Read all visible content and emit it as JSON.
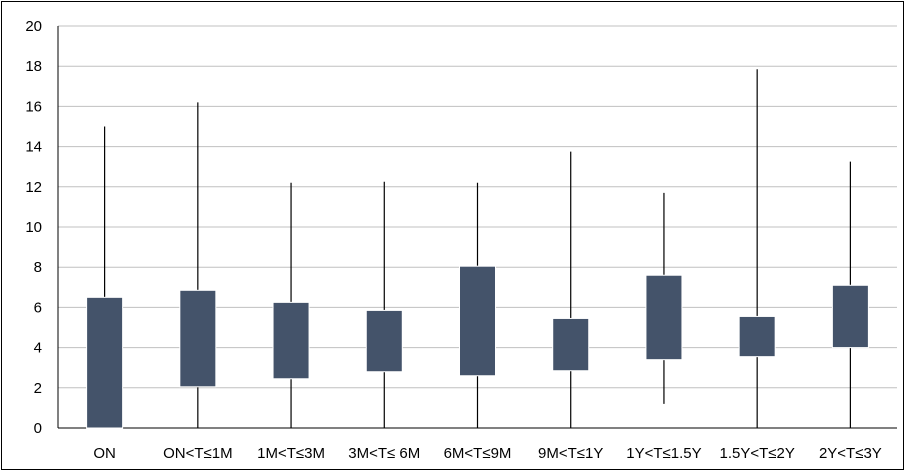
{
  "chart_data": {
    "type": "box",
    "categories": [
      "ON",
      "ON<T≤1M",
      "1M<T≤3M",
      "3M<T≤ 6M",
      "6M<T≤9M",
      "9M<T≤1Y",
      "1Y<T≤1.5Y",
      "1.5Y<T≤2Y",
      "2Y<T≤3Y"
    ],
    "boxes": [
      {
        "min": 0.0,
        "q1": 0.0,
        "q3": 6.5,
        "max": 15.0
      },
      {
        "min": 0.0,
        "q1": 2.05,
        "q3": 6.85,
        "max": 16.2
      },
      {
        "min": 0.0,
        "q1": 2.45,
        "q3": 6.25,
        "max": 12.2
      },
      {
        "min": 0.0,
        "q1": 2.8,
        "q3": 5.85,
        "max": 12.25
      },
      {
        "min": 0.0,
        "q1": 2.6,
        "q3": 8.05,
        "max": 12.2
      },
      {
        "min": 0.0,
        "q1": 2.85,
        "q3": 5.45,
        "max": 13.75
      },
      {
        "min": 1.2,
        "q1": 3.4,
        "q3": 7.6,
        "max": 11.7
      },
      {
        "min": 0.0,
        "q1": 3.55,
        "q3": 5.55,
        "max": 17.85
      },
      {
        "min": 0.0,
        "q1": 4.0,
        "q3": 7.1,
        "max": 13.25
      }
    ],
    "y_ticks": [
      "0",
      "2",
      "4",
      "6",
      "8",
      "10",
      "12",
      "14",
      "16",
      "18",
      "20"
    ],
    "ylim": [
      0,
      20
    ],
    "grid": true,
    "box_color": "#44536a",
    "grid_color": "#c0c0c0",
    "whisker_color": "#000000"
  }
}
